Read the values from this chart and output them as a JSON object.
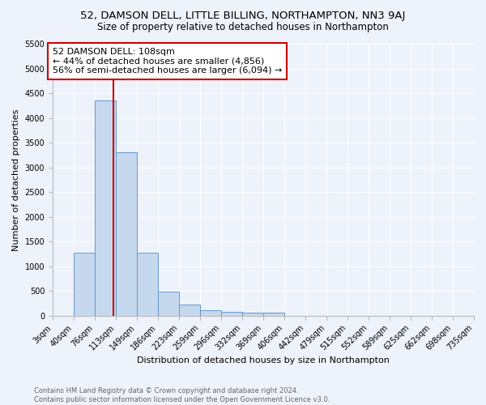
{
  "title": "52, DAMSON DELL, LITTLE BILLING, NORTHAMPTON, NN3 9AJ",
  "subtitle": "Size of property relative to detached houses in Northampton",
  "xlabel": "Distribution of detached houses by size in Northampton",
  "ylabel": "Number of detached properties",
  "bar_color": "#c5d8ee",
  "bar_edge_color": "#6699cc",
  "background_color": "#eef2fa",
  "grid_color": "#ffffff",
  "bins": [
    "3sqm",
    "40sqm",
    "76sqm",
    "113sqm",
    "149sqm",
    "186sqm",
    "223sqm",
    "259sqm",
    "296sqm",
    "332sqm",
    "369sqm",
    "406sqm",
    "442sqm",
    "479sqm",
    "515sqm",
    "552sqm",
    "589sqm",
    "625sqm",
    "662sqm",
    "698sqm",
    "735sqm"
  ],
  "values": [
    0,
    1270,
    4350,
    3310,
    1270,
    490,
    220,
    105,
    80,
    60,
    60,
    0,
    0,
    0,
    0,
    0,
    0,
    0,
    0,
    0
  ],
  "bin_edges": [
    3,
    40,
    76,
    113,
    149,
    186,
    223,
    259,
    296,
    332,
    369,
    406,
    442,
    479,
    515,
    552,
    589,
    625,
    662,
    698,
    735
  ],
  "annotation_text": "52 DAMSON DELL: 108sqm\n← 44% of detached houses are smaller (4,856)\n56% of semi-detached houses are larger (6,094) →",
  "annotation_box_color": "#ffffff",
  "annotation_box_edge": "#cc0000",
  "vline_color": "#cc0000",
  "vline_x": 108,
  "ylim": [
    0,
    5500
  ],
  "yticks": [
    0,
    500,
    1000,
    1500,
    2000,
    2500,
    3000,
    3500,
    4000,
    4500,
    5000,
    5500
  ],
  "footer_text": "Contains HM Land Registry data © Crown copyright and database right 2024.\nContains public sector information licensed under the Open Government Licence v3.0.",
  "title_fontsize": 9.5,
  "subtitle_fontsize": 8.5,
  "axis_label_fontsize": 8,
  "tick_fontsize": 7,
  "annotation_fontsize": 8,
  "footer_fontsize": 6
}
